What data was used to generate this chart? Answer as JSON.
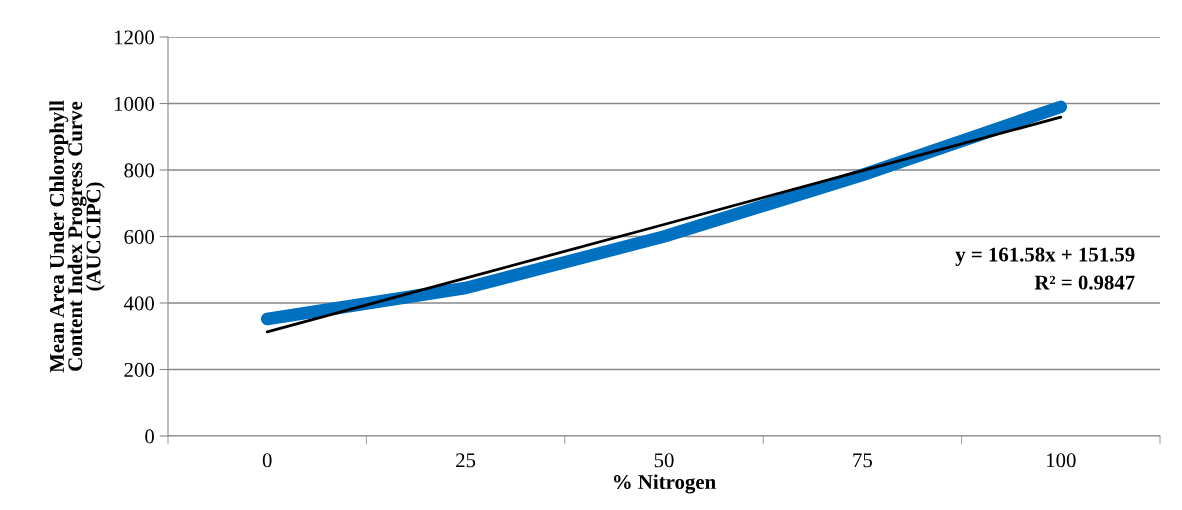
{
  "chart_data": {
    "type": "line",
    "xlabel": "% Nitrogen",
    "ylabel": "Mean Area Under Chlorophyll\nContent Index Progress Curve\n(AUCCIPC)",
    "categories": [
      "0",
      "25",
      "50",
      "75",
      "100"
    ],
    "series": [
      {
        "color": "#0070c0",
        "values": [
          352,
          445,
          600,
          785,
          990
        ]
      },
      {
        "color": "#000000",
        "values": [
          313,
          475,
          636,
          798,
          959
        ]
      }
    ],
    "ylim": [
      0,
      1200
    ],
    "yticks": [
      0,
      200,
      400,
      600,
      800,
      1000,
      1200
    ],
    "grid": "y",
    "legend": false,
    "marker": "none",
    "line_style": "solid",
    "annotations": [
      "y = 161.58x + 151.59",
      "R² = 0.9847"
    ]
  }
}
